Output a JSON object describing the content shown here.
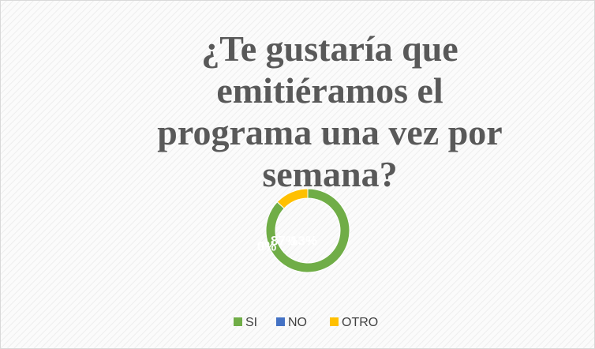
{
  "chart_data": {
    "type": "donut",
    "title_lines": [
      "¿Te gustaría que",
      "emitiéramos el",
      "programa una vez por",
      "semana?"
    ],
    "categories": [
      "SI",
      "NO",
      "OTRO"
    ],
    "values": [
      87,
      0,
      13
    ],
    "value_labels": [
      "87%",
      "0%",
      "13%"
    ],
    "colors": [
      "#70ad47",
      "#4472c4",
      "#ffc000"
    ],
    "legend": "bottom"
  }
}
